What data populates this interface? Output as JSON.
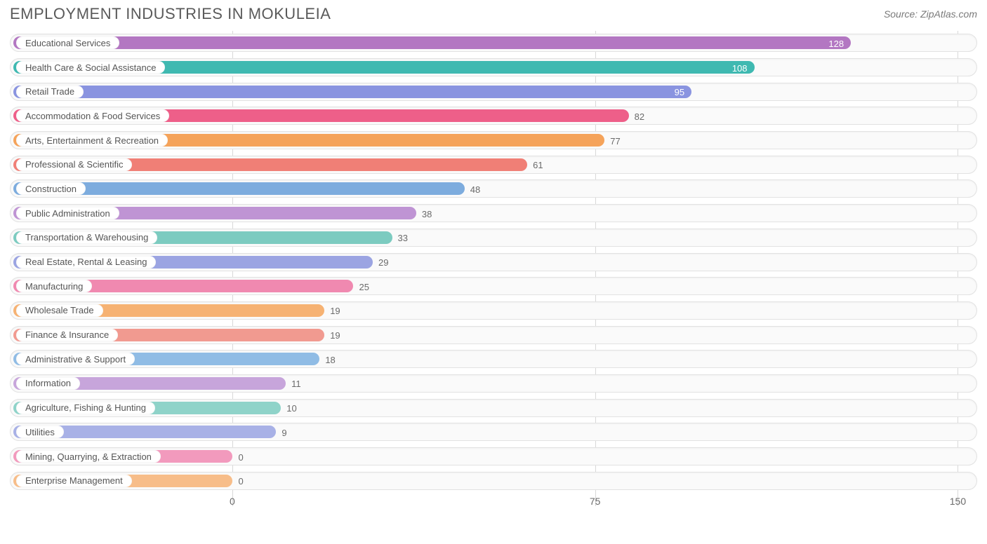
{
  "title": "EMPLOYMENT INDUSTRIES IN MOKULEIA",
  "source": "Source: ZipAtlas.com",
  "chart": {
    "type": "bar-horizontal",
    "xlim": [
      0,
      150
    ],
    "xticks": [
      0,
      75,
      150
    ],
    "x_origin_pct": 23.0,
    "x_span_pct": 75.0,
    "track_bg": "#fafafa",
    "track_border": "#e2e2e2",
    "grid_color": "#d8d8d8",
    "title_fontsize": 22,
    "label_fontsize": 13,
    "value_outside_color": "#6a6a6a",
    "value_inside_color": "#ffffff",
    "items": [
      {
        "label": "Educational Services",
        "value": 128,
        "color": "#b377c2",
        "value_inside": true
      },
      {
        "label": "Health Care & Social Assistance",
        "value": 108,
        "color": "#3fb9b1",
        "value_inside": true
      },
      {
        "label": "Retail Trade",
        "value": 95,
        "color": "#8a94e0",
        "value_inside": true
      },
      {
        "label": "Accommodation & Food Services",
        "value": 82,
        "color": "#ee5f89",
        "value_inside": false
      },
      {
        "label": "Arts, Entertainment & Recreation",
        "value": 77,
        "color": "#f5a35a",
        "value_inside": false
      },
      {
        "label": "Professional & Scientific",
        "value": 61,
        "color": "#f07f76",
        "value_inside": false
      },
      {
        "label": "Construction",
        "value": 48,
        "color": "#7dacde",
        "value_inside": false
      },
      {
        "label": "Public Administration",
        "value": 38,
        "color": "#bf94d4",
        "value_inside": false
      },
      {
        "label": "Transportation & Warehousing",
        "value": 33,
        "color": "#7ccbc0",
        "value_inside": false
      },
      {
        "label": "Real Estate, Rental & Leasing",
        "value": 29,
        "color": "#9ba4e2",
        "value_inside": false
      },
      {
        "label": "Manufacturing",
        "value": 25,
        "color": "#f089b0",
        "value_inside": false
      },
      {
        "label": "Wholesale Trade",
        "value": 19,
        "color": "#f6b273",
        "value_inside": false
      },
      {
        "label": "Finance & Insurance",
        "value": 19,
        "color": "#f19a90",
        "value_inside": false
      },
      {
        "label": "Administrative & Support",
        "value": 18,
        "color": "#90bce5",
        "value_inside": false
      },
      {
        "label": "Information",
        "value": 11,
        "color": "#c7a5db",
        "value_inside": false
      },
      {
        "label": "Agriculture, Fishing & Hunting",
        "value": 10,
        "color": "#8fd3c9",
        "value_inside": false
      },
      {
        "label": "Utilities",
        "value": 9,
        "color": "#a8b1e6",
        "value_inside": false
      },
      {
        "label": "Mining, Quarrying, & Extraction",
        "value": 0,
        "color": "#f29abd",
        "value_inside": false
      },
      {
        "label": "Enterprise Management",
        "value": 0,
        "color": "#f7bd89",
        "value_inside": false
      }
    ]
  }
}
